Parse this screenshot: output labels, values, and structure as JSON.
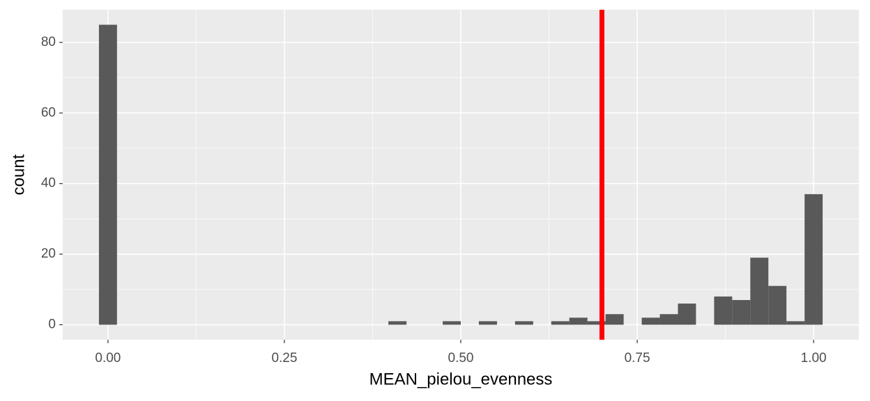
{
  "chart_data": {
    "type": "histogram",
    "x_label": "MEAN_pielou_evenness",
    "y_label": "count",
    "bins": [
      -0.0128,
      0.0128,
      0.0385,
      0.0641,
      0.0897,
      0.1154,
      0.141,
      0.1667,
      0.1923,
      0.2179,
      0.2436,
      0.2692,
      0.2949,
      0.3205,
      0.3462,
      0.3718,
      0.3974,
      0.4231,
      0.4487,
      0.4744,
      0.5,
      0.5256,
      0.5513,
      0.5769,
      0.6026,
      0.6282,
      0.6538,
      0.6795,
      0.7051,
      0.7308,
      0.7564,
      0.7821,
      0.8077,
      0.8333,
      0.859,
      0.8846,
      0.9103,
      0.9359,
      0.9615,
      0.9872,
      1.0128
    ],
    "values": [
      85,
      0,
      0,
      0,
      0,
      0,
      0,
      0,
      0,
      0,
      0,
      0,
      0,
      0,
      0,
      0,
      1,
      0,
      0,
      1,
      0,
      1,
      0,
      1,
      0,
      1,
      2,
      1,
      3,
      0,
      2,
      3,
      6,
      0,
      8,
      7,
      19,
      11,
      1,
      37
    ],
    "color": "#595959",
    "vline": {
      "x": 0.7,
      "color": "#ff0000"
    },
    "xlim": [
      -0.0641,
      1.0641
    ],
    "ylim": [
      -4.25,
      89.25
    ],
    "xticks": [
      {
        "value": 0,
        "label": "0.00"
      },
      {
        "value": 0.25,
        "label": "0.25"
      },
      {
        "value": 0.5,
        "label": "0.50"
      },
      {
        "value": 0.75,
        "label": "0.75"
      },
      {
        "value": 1,
        "label": "1.00"
      }
    ],
    "yticks": [
      0,
      20,
      40,
      60,
      80
    ],
    "x_minor_grid": [
      0.125,
      0.375,
      0.625,
      0.875
    ],
    "y_minor_grid": [
      10,
      30,
      50,
      70
    ],
    "grid": true
  }
}
